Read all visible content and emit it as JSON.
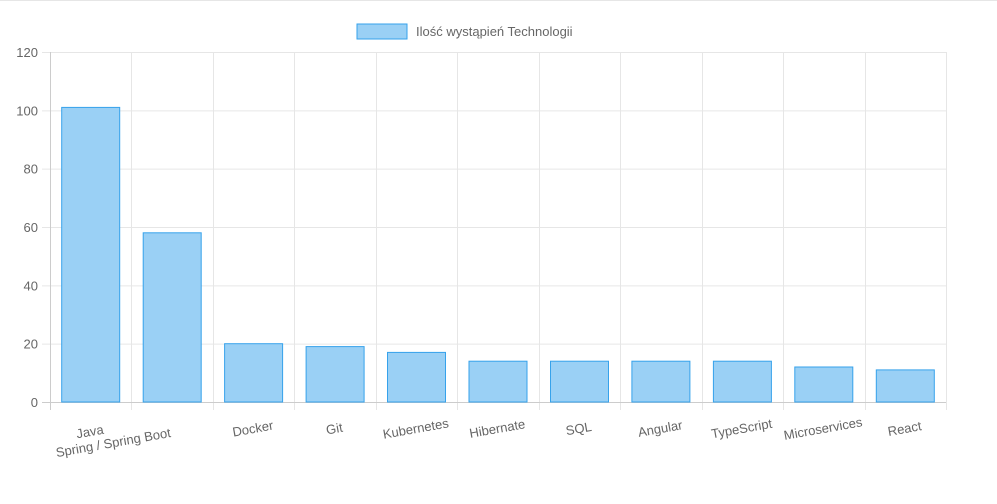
{
  "chart_data": {
    "type": "bar",
    "categories": [
      "Java",
      "Spring / Spring Boot",
      "Docker",
      "Git",
      "Kubernetes",
      "Hibernate",
      "SQL",
      "Angular",
      "TypeScript",
      "Microservices",
      "React"
    ],
    "series": [
      {
        "name": "Ilość wystąpień Technologii",
        "values": [
          101,
          58,
          20,
          19,
          17,
          14,
          14,
          14,
          14,
          12,
          11
        ]
      }
    ],
    "title": "",
    "xlabel": "",
    "ylabel": "",
    "ylim": [
      0,
      120
    ],
    "yticks": [
      0,
      20,
      40,
      60,
      80,
      100,
      120
    ],
    "grid": true,
    "legend": "top-center",
    "colors": {
      "bar_fill": "#9ad0f5",
      "bar_border": "#36a2eb",
      "grid": "#e6e6e6",
      "text": "#666666"
    }
  }
}
